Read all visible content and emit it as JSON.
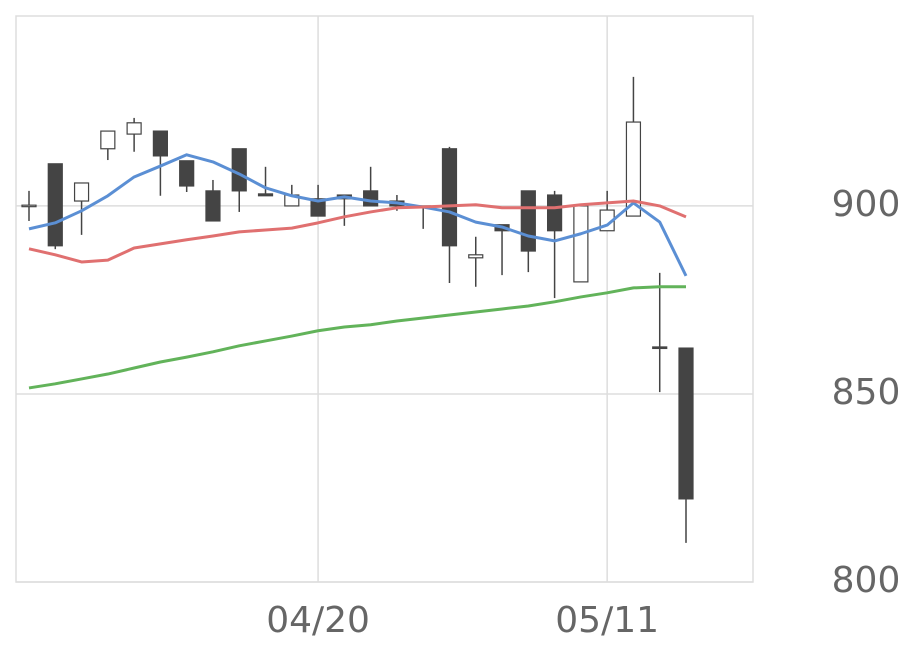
{
  "chart_data": {
    "type": "candlestick",
    "categories": [
      null,
      null,
      null,
      null,
      null,
      null,
      null,
      null,
      null,
      null,
      null,
      "04/20",
      null,
      null,
      null,
      null,
      null,
      null,
      null,
      null,
      null,
      null,
      "05/11",
      null,
      null,
      null
    ],
    "open": [
      900,
      911.2,
      901.3,
      915.2,
      919.1,
      919.9,
      912,
      904,
      915.2,
      903.2,
      900,
      901.9,
      902.9,
      904,
      901.3,
      900,
      915.2,
      886.2,
      895,
      904,
      902.9,
      879.8,
      893.4,
      897.3,
      862.5,
      862.2
    ],
    "high": [
      904,
      911.2,
      906.1,
      919.9,
      923.4,
      919.9,
      912,
      906.9,
      915.2,
      910.4,
      905.6,
      905.6,
      902.9,
      910.4,
      902.9,
      900,
      915.7,
      891.8,
      895,
      904,
      904,
      900,
      904,
      934.3,
      882.2,
      862.2
    ],
    "low": [
      896,
      888.5,
      892.3,
      912.2,
      914.4,
      902.7,
      903.7,
      896,
      898.4,
      902.7,
      900,
      897.3,
      894.7,
      900,
      898.7,
      893.9,
      879.5,
      878.5,
      881.6,
      882.4,
      875.5,
      879.8,
      893.4,
      897.3,
      850.5,
      810.4
    ],
    "close": [
      900.2,
      889.4,
      906.1,
      919.9,
      922.1,
      913.3,
      905.3,
      896,
      904,
      902.7,
      902.9,
      897.3,
      901.9,
      900,
      900,
      899.8,
      889.4,
      887,
      893.4,
      888,
      893.4,
      900,
      898.9,
      922.3,
      862.2,
      822.1
    ],
    "up_color": "#ffffff",
    "down_color": "#444444",
    "lines": [
      {
        "color": "#5b8fd4",
        "values": [
          893.9,
          895.5,
          898.7,
          902.7,
          907.7,
          910.6,
          913.6,
          911.7,
          908.5,
          904.8,
          902.7,
          901.3,
          902.4,
          901.3,
          900.8,
          899.7,
          898.4,
          895.7,
          894.4,
          892,
          890.7,
          892.6,
          894.9,
          900.8,
          895.7,
          881.4
        ]
      },
      {
        "color": "#e07070",
        "values": [
          888.6,
          887,
          885.1,
          885.6,
          888.8,
          889.9,
          891,
          892,
          893.1,
          893.6,
          894.1,
          895.5,
          897.1,
          898.4,
          899.5,
          899.7,
          900,
          900.3,
          899.5,
          899.5,
          899.5,
          900.3,
          900.8,
          901.3,
          900,
          897.1
        ]
      },
      {
        "color": "#62b35a",
        "values": [
          851.6,
          852.7,
          854,
          855.3,
          856.9,
          858.5,
          859.8,
          861.2,
          862.8,
          864.1,
          865.4,
          866.8,
          867.8,
          868.4,
          869.4,
          870.2,
          871,
          871.8,
          872.6,
          873.4,
          874.5,
          875.8,
          876.9,
          878.2,
          878.5,
          878.5
        ]
      }
    ],
    "ylim": [
      800,
      950.5
    ],
    "yticks": [
      800,
      850,
      900
    ],
    "grid": true
  }
}
